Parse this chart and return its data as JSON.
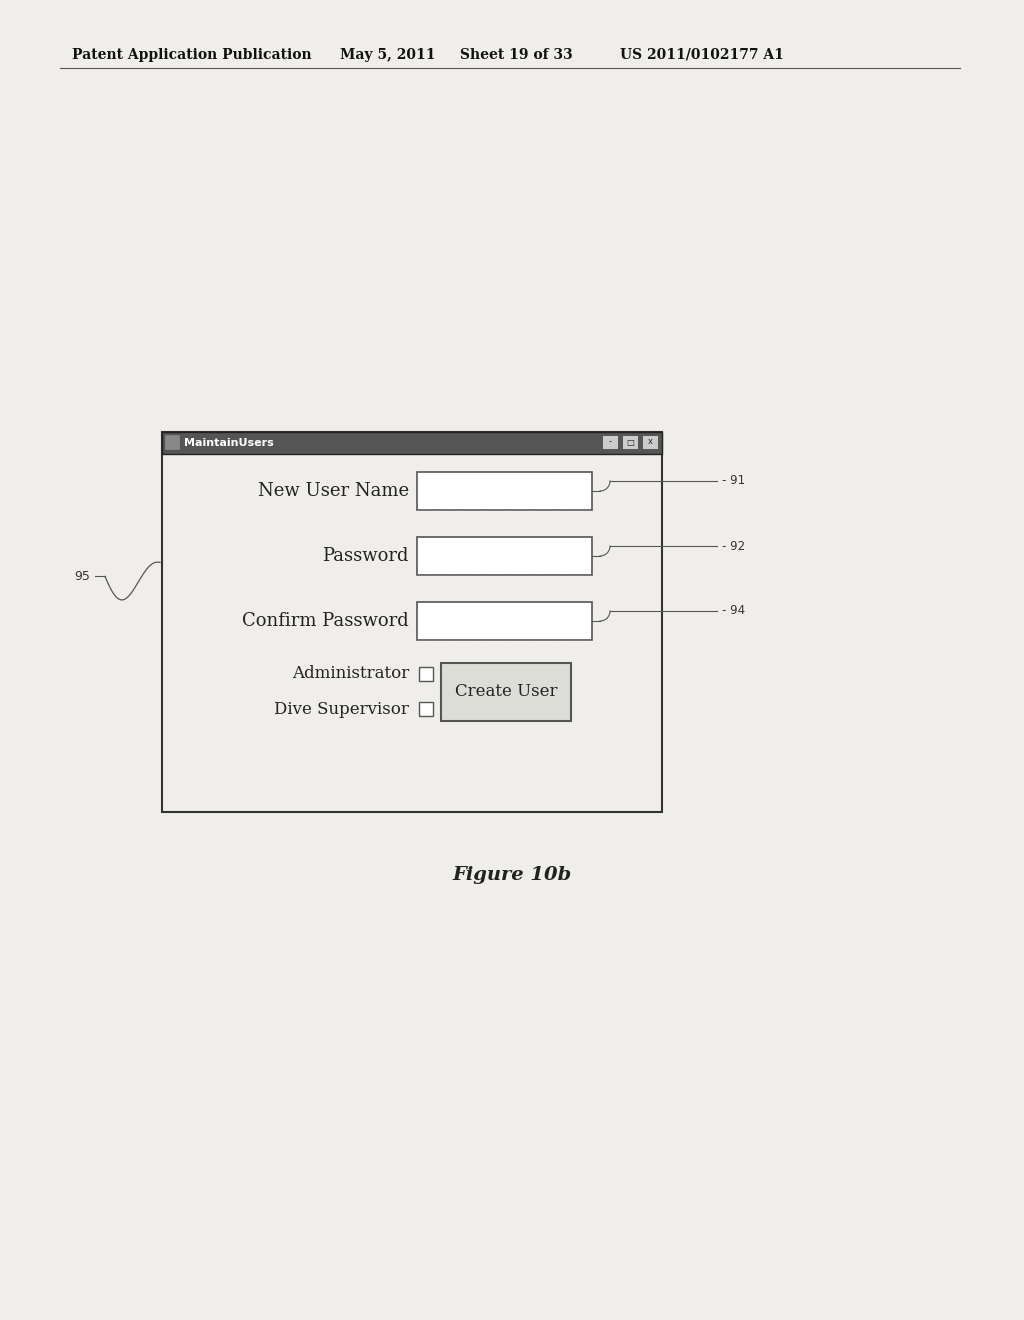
{
  "bg_color": "#f0eeea",
  "header_text": "Patent Application Publication",
  "header_date": "May 5, 2011",
  "header_sheet": "Sheet 19 of 33",
  "header_patent": "US 2011/0102177 A1",
  "figure_label": "Figure 10b",
  "window_title": "MaintainUsers",
  "fields": [
    {
      "label": "New User Name",
      "ref": "91"
    },
    {
      "label": "Password",
      "ref": "92"
    },
    {
      "label": "Confirm Password",
      "ref": "94"
    }
  ],
  "checkboxes": [
    {
      "label": "Administrator"
    },
    {
      "label": "Dive Supervisor"
    }
  ],
  "button_label": "Create User",
  "ref_95": "95"
}
